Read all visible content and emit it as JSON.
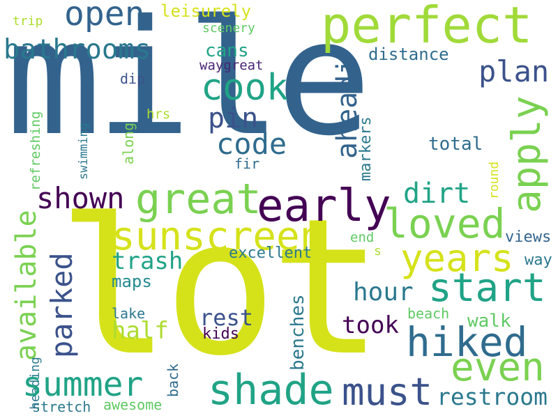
{
  "palette": {
    "background": "#ffffff",
    "navy": "#33638d",
    "teal": "#20a386",
    "green": "#5ec962",
    "lime": "#addc30",
    "yellow": "#d5e21a",
    "purple": "#440154",
    "indigo": "#3b528b",
    "cyan": "#238a8d"
  },
  "words": [
    {
      "text": "mile",
      "color": "#33638d"
    },
    {
      "text": "lot",
      "color": "#d5e21a"
    },
    {
      "text": "perfect",
      "color": "#a0da39"
    },
    {
      "text": "open",
      "color": "#33638d"
    },
    {
      "text": "leisurely",
      "color": "#d5e21a"
    },
    {
      "text": "trip",
      "color": "#addc30"
    },
    {
      "text": "scenery",
      "color": "#5ec962"
    },
    {
      "text": "bathrooms",
      "color": "#2a788e"
    },
    {
      "text": "cans",
      "color": "#20a386"
    },
    {
      "text": "distance",
      "color": "#2f6c8e"
    },
    {
      "text": "cook",
      "color": "#20a386"
    },
    {
      "text": "waygreat",
      "color": "#482475"
    },
    {
      "text": "dip",
      "color": "#3b528b"
    },
    {
      "text": "plan",
      "color": "#3b528b"
    },
    {
      "text": "pin",
      "color": "#3b528b"
    },
    {
      "text": "aheadi",
      "color": "#33638d"
    },
    {
      "text": "apply",
      "color": "#7ad151"
    },
    {
      "text": "code",
      "color": "#2f6c8e"
    },
    {
      "text": "total",
      "color": "#2f6c8e"
    },
    {
      "text": "fir",
      "color": "#2f6c8e"
    },
    {
      "text": "refreshing",
      "color": "#5ec962"
    },
    {
      "text": "swimming",
      "color": "#2a788e"
    },
    {
      "text": "along",
      "color": "#7ad151"
    },
    {
      "text": "hrs",
      "color": "#addc30"
    },
    {
      "text": "markers",
      "color": "#2a788e"
    },
    {
      "text": "round",
      "color": "#d5e21a"
    },
    {
      "text": "shown",
      "color": "#440154"
    },
    {
      "text": "great",
      "color": "#7ad151"
    },
    {
      "text": "early",
      "color": "#440154"
    },
    {
      "text": "dirt",
      "color": "#20a386"
    },
    {
      "text": "loved",
      "color": "#7ad151"
    },
    {
      "text": "sunscreen",
      "color": "#d5e21a"
    },
    {
      "text": "years",
      "color": "#d5e21a"
    },
    {
      "text": "available",
      "color": "#7ad151"
    },
    {
      "text": "parked",
      "color": "#3b528b"
    },
    {
      "text": "trash",
      "color": "#20a386"
    },
    {
      "text": "maps",
      "color": "#238a8d"
    },
    {
      "text": "excellent",
      "color": "#2a788e"
    },
    {
      "text": "end",
      "color": "#5ec962"
    },
    {
      "text": "s",
      "color": "#addc30"
    },
    {
      "text": "views",
      "color": "#33638d"
    },
    {
      "text": "way",
      "color": "#2a788e"
    },
    {
      "text": "start",
      "color": "#20a386"
    },
    {
      "text": "hour",
      "color": "#2a788e"
    },
    {
      "text": "half",
      "color": "#addc30"
    },
    {
      "text": "lake",
      "color": "#2a788e"
    },
    {
      "text": "rest",
      "color": "#3b528b"
    },
    {
      "text": "kids",
      "color": "#440154"
    },
    {
      "text": "benches",
      "color": "#2a788e"
    },
    {
      "text": "took",
      "color": "#440154"
    },
    {
      "text": "beach",
      "color": "#5ec962"
    },
    {
      "text": "walk",
      "color": "#5ec962"
    },
    {
      "text": "hiked",
      "color": "#2f6c8e"
    },
    {
      "text": "even",
      "color": "#7ad151"
    },
    {
      "text": "heading",
      "color": "#2a788e"
    },
    {
      "text": "back",
      "color": "#2f6c8e"
    },
    {
      "text": "summer",
      "color": "#20a386"
    },
    {
      "text": "shade",
      "color": "#20a386"
    },
    {
      "text": "must",
      "color": "#3b528b"
    },
    {
      "text": "restroom",
      "color": "#2a788e"
    },
    {
      "text": "stretch",
      "color": "#2a788e"
    },
    {
      "text": "awesome",
      "color": "#5ec962"
    }
  ]
}
